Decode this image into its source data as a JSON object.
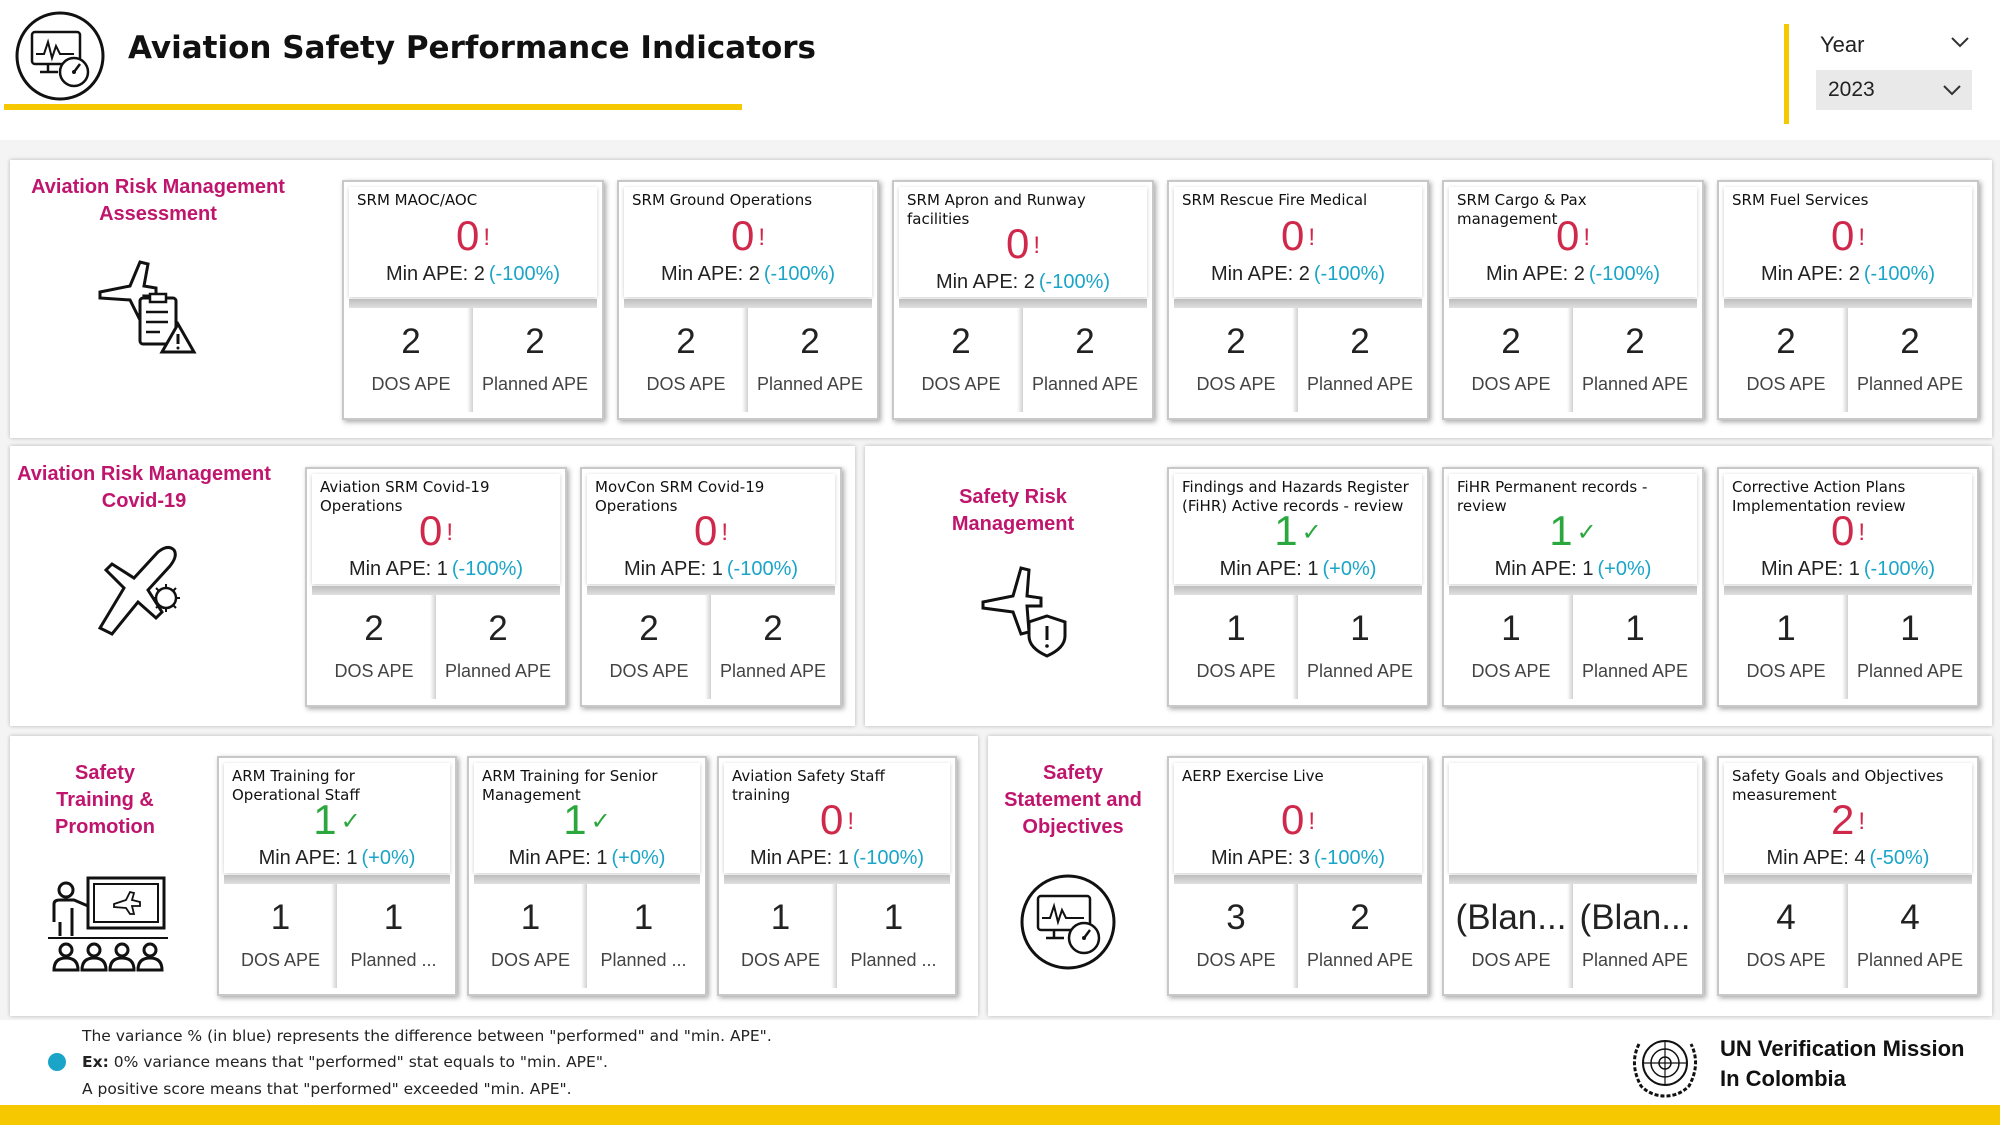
{
  "header": {
    "title": "Aviation Safety Performance Indicators",
    "year_label": "Year",
    "year_value": "2023"
  },
  "sections": {
    "risk_assessment": "Aviation Risk Management Assessment",
    "covid": "Aviation Risk Management Covid-19",
    "safety_risk": "Safety Risk Management",
    "training": "Safety Training & Promotion",
    "statement": "Safety Statement and Objectives"
  },
  "cards": {
    "c1": {
      "label": "SRM MAOC/AOC",
      "value": "0",
      "mark": "!",
      "min": "Min APE: 2",
      "variance": "(-100%)",
      "dos": "2",
      "dos_label": "DOS APE",
      "planned": "2",
      "planned_label": "Planned APE"
    },
    "c2": {
      "label": "SRM Ground Operations",
      "value": "0",
      "mark": "!",
      "min": "Min APE: 2",
      "variance": "(-100%)",
      "dos": "2",
      "dos_label": "DOS APE",
      "planned": "2",
      "planned_label": "Planned APE"
    },
    "c3": {
      "label": "SRM Apron and Runway facilities",
      "value": "0",
      "mark": "!",
      "min": "Min APE: 2",
      "variance": "(-100%)",
      "dos": "2",
      "dos_label": "DOS APE",
      "planned": "2",
      "planned_label": "Planned APE"
    },
    "c4": {
      "label": "SRM Rescue Fire Medical",
      "value": "0",
      "mark": "!",
      "min": "Min APE: 2",
      "variance": "(-100%)",
      "dos": "2",
      "dos_label": "DOS APE",
      "planned": "2",
      "planned_label": "Planned APE"
    },
    "c5": {
      "label": "SRM Cargo & Pax management",
      "value": "0",
      "mark": "!",
      "min": "Min APE: 2",
      "variance": "(-100%)",
      "dos": "2",
      "dos_label": "DOS APE",
      "planned": "2",
      "planned_label": "Planned APE"
    },
    "c6": {
      "label": "SRM Fuel Services",
      "value": "0",
      "mark": "!",
      "min": "Min APE: 2",
      "variance": "(-100%)",
      "dos": "2",
      "dos_label": "DOS APE",
      "planned": "2",
      "planned_label": "Planned APE"
    },
    "c7": {
      "label": "Aviation SRM Covid-19 Operations",
      "value": "0",
      "mark": "!",
      "min": "Min APE: 1",
      "variance": "(-100%)",
      "dos": "2",
      "dos_label": "DOS APE",
      "planned": "2",
      "planned_label": "Planned APE"
    },
    "c8": {
      "label": "MovCon SRM Covid-19 Operations",
      "value": "0",
      "mark": "!",
      "min": "Min APE: 1",
      "variance": "(-100%)",
      "dos": "2",
      "dos_label": "DOS APE",
      "planned": "2",
      "planned_label": "Planned APE"
    },
    "c9": {
      "label": "Findings and Hazards Register (FiHR) Active records - review",
      "value": "1",
      "mark": "✓",
      "min": "Min APE: 1",
      "variance": "(+0%)",
      "dos": "1",
      "dos_label": "DOS APE",
      "planned": "1",
      "planned_label": "Planned APE"
    },
    "c10": {
      "label": "FiHR Permanent records - review",
      "value": "1",
      "mark": "✓",
      "min": "Min APE: 1",
      "variance": "(+0%)",
      "dos": "1",
      "dos_label": "DOS APE",
      "planned": "1",
      "planned_label": "Planned APE"
    },
    "c11": {
      "label": "Corrective Action Plans Implementation review",
      "value": "0",
      "mark": "!",
      "min": "Min APE: 1",
      "variance": "(-100%)",
      "dos": "1",
      "dos_label": "DOS APE",
      "planned": "1",
      "planned_label": "Planned APE"
    },
    "c12": {
      "label": "ARM Training for Operational Staff",
      "value": "1",
      "mark": "✓",
      "min": "Min APE: 1",
      "variance": "(+0%)",
      "dos": "1",
      "dos_label": "DOS APE",
      "planned": "1",
      "planned_label": "Planned ..."
    },
    "c13": {
      "label": "ARM Training for Senior Management",
      "value": "1",
      "mark": "✓",
      "min": "Min APE: 1",
      "variance": "(+0%)",
      "dos": "1",
      "dos_label": "DOS APE",
      "planned": "1",
      "planned_label": "Planned ..."
    },
    "c14": {
      "label": "Aviation Safety Staff training",
      "value": "0",
      "mark": "!",
      "min": "Min APE: 1",
      "variance": "(-100%)",
      "dos": "1",
      "dos_label": "DOS APE",
      "planned": "1",
      "planned_label": "Planned ..."
    },
    "c15": {
      "label": "AERP Exercise Live",
      "value": "0",
      "mark": "!",
      "min": "Min APE: 3",
      "variance": "(-100%)",
      "dos": "3",
      "dos_label": "DOS APE",
      "planned": "2",
      "planned_label": "Planned APE"
    },
    "c16": {
      "label": "",
      "value": "",
      "mark": "",
      "min": "",
      "variance": "",
      "dos": "(Blan...",
      "dos_label": "DOS APE",
      "planned": "(Blan...",
      "planned_label": "Planned APE"
    },
    "c17": {
      "label": "Safety Goals and Objectives measurement",
      "value": "2",
      "mark": "!",
      "min": "Min APE: 4",
      "variance": "(-50%)",
      "dos": "4",
      "dos_label": "DOS APE",
      "planned": "4",
      "planned_label": "Planned APE"
    }
  },
  "footer": {
    "line1": "The variance % (in blue) represents the difference between \"performed\" and \"min. APE\".",
    "line2_bold": "Ex:",
    "line2": "0% variance means that \"performed\" stat equals to \"min. APE\".",
    "line3": "A positive score means that \"performed\" exceeded \"min. APE\".",
    "org_line1": "UN Verification Mission",
    "org_line2": "In Colombia"
  },
  "colors": {
    "accent_yellow": "#f5c800",
    "section_title": "#c0156d",
    "negative": "#d0284b",
    "positive": "#2aa73d",
    "variance": "#1aa5c8"
  },
  "icons": {
    "header": "dashboard-monitor-gauge-icon",
    "risk_assessment": "airplane-checklist-warning-icon",
    "covid": "airplane-virus-icon",
    "safety_risk": "airplane-shield-icon",
    "training": "classroom-presentation-icon",
    "statement": "monitor-gauge-icon",
    "un": "un-emblem-icon"
  }
}
